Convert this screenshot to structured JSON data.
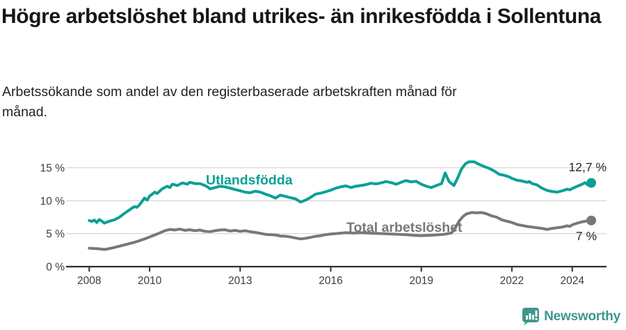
{
  "title": "Högre arbetslöshet bland utrikes- än inrikesfödda i Sollentuna",
  "subtitle": "Arbetssökande som andel av den registerbaserade arbetskraften månad för månad.",
  "branding": {
    "logo_text": "Newsworthy",
    "logo_icon": "newsworthy-bars-bubble-icon",
    "logo_color": "#3d968e"
  },
  "colors": {
    "foreign_born_line": "#0aa096",
    "total_line": "#78777c",
    "gridline": "#d9d9d9",
    "axis": "#2e2e2e",
    "tick_label": "#3d3d3d",
    "end_label": "#2b2b2b",
    "title_text": "#161616",
    "subtitle_text": "#222222"
  },
  "chart_data": {
    "type": "line",
    "title": "Högre arbetslöshet bland utrikes- än inrikesfödda i Sollentuna",
    "subtitle": "Arbetssökande som andel av den registerbaserade arbetskraften månad för månad.",
    "xlabel": "",
    "ylabel": "",
    "x_range": [
      2007.25,
      2025.1
    ],
    "y_range": [
      0,
      16.5
    ],
    "grid": "horizontal",
    "legend_position": "inline-labels",
    "x_ticks": [
      2008,
      2010,
      2013,
      2016,
      2019,
      2022,
      2024
    ],
    "x_tick_labels": [
      "2008",
      "2010",
      "2013",
      "2016",
      "2019",
      "2022",
      "2024"
    ],
    "y_ticks": [
      0,
      5,
      10,
      15
    ],
    "y_tick_labels": [
      "0 %",
      "5 %",
      "10 %",
      "15 %"
    ],
    "series": [
      {
        "name": "Utlandsfödda",
        "color": "#0aa096",
        "end_label": "12,7 %",
        "last_value": 12.7,
        "points": [
          [
            2008.0,
            7.0
          ],
          [
            2008.08,
            6.85
          ],
          [
            2008.17,
            7.05
          ],
          [
            2008.25,
            6.7
          ],
          [
            2008.33,
            7.15
          ],
          [
            2008.42,
            6.9
          ],
          [
            2008.5,
            6.6
          ],
          [
            2008.58,
            6.75
          ],
          [
            2008.67,
            6.9
          ],
          [
            2008.83,
            7.1
          ],
          [
            2009.0,
            7.5
          ],
          [
            2009.17,
            8.1
          ],
          [
            2009.33,
            8.6
          ],
          [
            2009.42,
            8.9
          ],
          [
            2009.5,
            9.1
          ],
          [
            2009.58,
            9.0
          ],
          [
            2009.67,
            9.4
          ],
          [
            2009.75,
            9.9
          ],
          [
            2009.83,
            10.4
          ],
          [
            2009.92,
            10.1
          ],
          [
            2010.0,
            10.7
          ],
          [
            2010.17,
            11.3
          ],
          [
            2010.25,
            11.1
          ],
          [
            2010.42,
            11.8
          ],
          [
            2010.5,
            12.0
          ],
          [
            2010.58,
            12.2
          ],
          [
            2010.67,
            12.0
          ],
          [
            2010.75,
            12.5
          ],
          [
            2010.92,
            12.3
          ],
          [
            2011.08,
            12.7
          ],
          [
            2011.25,
            12.5
          ],
          [
            2011.33,
            12.8
          ],
          [
            2011.5,
            12.6
          ],
          [
            2011.67,
            12.6
          ],
          [
            2011.83,
            12.3
          ],
          [
            2011.92,
            12.1
          ],
          [
            2012.0,
            11.8
          ],
          [
            2012.17,
            12.0
          ],
          [
            2012.33,
            12.2
          ],
          [
            2012.5,
            12.1
          ],
          [
            2012.67,
            11.9
          ],
          [
            2012.83,
            11.7
          ],
          [
            2013.0,
            11.5
          ],
          [
            2013.17,
            11.3
          ],
          [
            2013.33,
            11.2
          ],
          [
            2013.5,
            11.45
          ],
          [
            2013.67,
            11.3
          ],
          [
            2013.83,
            11.0
          ],
          [
            2014.0,
            10.75
          ],
          [
            2014.17,
            10.4
          ],
          [
            2014.33,
            10.85
          ],
          [
            2014.5,
            10.65
          ],
          [
            2014.67,
            10.45
          ],
          [
            2014.83,
            10.3
          ],
          [
            2015.0,
            9.8
          ],
          [
            2015.17,
            10.1
          ],
          [
            2015.33,
            10.5
          ],
          [
            2015.5,
            11.0
          ],
          [
            2015.67,
            11.15
          ],
          [
            2015.83,
            11.35
          ],
          [
            2016.0,
            11.6
          ],
          [
            2016.17,
            11.9
          ],
          [
            2016.33,
            12.1
          ],
          [
            2016.5,
            12.25
          ],
          [
            2016.67,
            12.0
          ],
          [
            2016.83,
            12.2
          ],
          [
            2017.0,
            12.3
          ],
          [
            2017.17,
            12.45
          ],
          [
            2017.33,
            12.65
          ],
          [
            2017.5,
            12.55
          ],
          [
            2017.67,
            12.7
          ],
          [
            2017.83,
            12.9
          ],
          [
            2018.0,
            12.75
          ],
          [
            2018.17,
            12.5
          ],
          [
            2018.33,
            12.8
          ],
          [
            2018.5,
            13.05
          ],
          [
            2018.67,
            12.85
          ],
          [
            2018.83,
            12.95
          ],
          [
            2019.0,
            12.5
          ],
          [
            2019.17,
            12.2
          ],
          [
            2019.33,
            12.0
          ],
          [
            2019.5,
            12.3
          ],
          [
            2019.67,
            12.6
          ],
          [
            2019.79,
            14.2
          ],
          [
            2019.92,
            12.9
          ],
          [
            2020.08,
            12.3
          ],
          [
            2020.21,
            13.5
          ],
          [
            2020.33,
            14.8
          ],
          [
            2020.46,
            15.6
          ],
          [
            2020.58,
            15.9
          ],
          [
            2020.75,
            15.9
          ],
          [
            2020.92,
            15.5
          ],
          [
            2021.08,
            15.2
          ],
          [
            2021.25,
            14.9
          ],
          [
            2021.42,
            14.5
          ],
          [
            2021.58,
            14.0
          ],
          [
            2021.75,
            13.85
          ],
          [
            2021.92,
            13.6
          ],
          [
            2022.0,
            13.4
          ],
          [
            2022.17,
            13.1
          ],
          [
            2022.33,
            13.0
          ],
          [
            2022.5,
            12.8
          ],
          [
            2022.58,
            12.9
          ],
          [
            2022.67,
            12.6
          ],
          [
            2022.83,
            12.4
          ],
          [
            2023.0,
            11.9
          ],
          [
            2023.17,
            11.55
          ],
          [
            2023.33,
            11.4
          ],
          [
            2023.5,
            11.3
          ],
          [
            2023.67,
            11.5
          ],
          [
            2023.83,
            11.75
          ],
          [
            2023.92,
            11.65
          ],
          [
            2024.0,
            11.85
          ],
          [
            2024.17,
            12.2
          ],
          [
            2024.33,
            12.5
          ],
          [
            2024.42,
            12.75
          ],
          [
            2024.5,
            12.45
          ],
          [
            2024.63,
            12.7
          ]
        ]
      },
      {
        "name": "Total arbetslöshet",
        "color": "#78777c",
        "end_label": "7 %",
        "last_value": 7.0,
        "points": [
          [
            2008.0,
            2.8
          ],
          [
            2008.17,
            2.75
          ],
          [
            2008.33,
            2.7
          ],
          [
            2008.5,
            2.6
          ],
          [
            2008.67,
            2.75
          ],
          [
            2008.83,
            2.9
          ],
          [
            2009.0,
            3.1
          ],
          [
            2009.17,
            3.3
          ],
          [
            2009.33,
            3.5
          ],
          [
            2009.5,
            3.7
          ],
          [
            2009.67,
            3.95
          ],
          [
            2009.83,
            4.2
          ],
          [
            2010.0,
            4.5
          ],
          [
            2010.17,
            4.8
          ],
          [
            2010.33,
            5.1
          ],
          [
            2010.5,
            5.45
          ],
          [
            2010.67,
            5.65
          ],
          [
            2010.83,
            5.55
          ],
          [
            2011.0,
            5.7
          ],
          [
            2011.17,
            5.5
          ],
          [
            2011.33,
            5.6
          ],
          [
            2011.5,
            5.45
          ],
          [
            2011.67,
            5.55
          ],
          [
            2011.83,
            5.35
          ],
          [
            2012.0,
            5.3
          ],
          [
            2012.17,
            5.45
          ],
          [
            2012.33,
            5.55
          ],
          [
            2012.5,
            5.6
          ],
          [
            2012.67,
            5.4
          ],
          [
            2012.83,
            5.5
          ],
          [
            2013.0,
            5.35
          ],
          [
            2013.17,
            5.45
          ],
          [
            2013.33,
            5.3
          ],
          [
            2013.5,
            5.2
          ],
          [
            2013.67,
            5.05
          ],
          [
            2013.83,
            4.9
          ],
          [
            2014.0,
            4.85
          ],
          [
            2014.17,
            4.8
          ],
          [
            2014.33,
            4.65
          ],
          [
            2014.5,
            4.6
          ],
          [
            2014.67,
            4.5
          ],
          [
            2014.83,
            4.35
          ],
          [
            2015.0,
            4.2
          ],
          [
            2015.17,
            4.3
          ],
          [
            2015.33,
            4.45
          ],
          [
            2015.5,
            4.6
          ],
          [
            2015.67,
            4.7
          ],
          [
            2015.83,
            4.85
          ],
          [
            2016.0,
            4.95
          ],
          [
            2016.25,
            5.05
          ],
          [
            2016.5,
            5.15
          ],
          [
            2016.75,
            5.1
          ],
          [
            2017.0,
            5.15
          ],
          [
            2017.25,
            5.1
          ],
          [
            2017.5,
            5.05
          ],
          [
            2017.75,
            5.0
          ],
          [
            2018.0,
            4.95
          ],
          [
            2018.25,
            4.9
          ],
          [
            2018.5,
            4.85
          ],
          [
            2018.75,
            4.75
          ],
          [
            2019.0,
            4.7
          ],
          [
            2019.25,
            4.75
          ],
          [
            2019.5,
            4.8
          ],
          [
            2019.75,
            4.9
          ],
          [
            2020.0,
            5.1
          ],
          [
            2020.13,
            5.9
          ],
          [
            2020.25,
            6.9
          ],
          [
            2020.38,
            7.6
          ],
          [
            2020.5,
            8.0
          ],
          [
            2020.67,
            8.2
          ],
          [
            2020.83,
            8.15
          ],
          [
            2021.0,
            8.2
          ],
          [
            2021.17,
            8.0
          ],
          [
            2021.33,
            7.7
          ],
          [
            2021.5,
            7.5
          ],
          [
            2021.67,
            7.1
          ],
          [
            2021.83,
            6.9
          ],
          [
            2022.0,
            6.7
          ],
          [
            2022.17,
            6.4
          ],
          [
            2022.33,
            6.25
          ],
          [
            2022.5,
            6.1
          ],
          [
            2022.67,
            6.0
          ],
          [
            2022.83,
            5.9
          ],
          [
            2023.0,
            5.8
          ],
          [
            2023.17,
            5.65
          ],
          [
            2023.33,
            5.8
          ],
          [
            2023.5,
            5.9
          ],
          [
            2023.67,
            6.0
          ],
          [
            2023.83,
            6.2
          ],
          [
            2023.92,
            6.1
          ],
          [
            2024.0,
            6.35
          ],
          [
            2024.17,
            6.6
          ],
          [
            2024.33,
            6.8
          ],
          [
            2024.5,
            6.95
          ],
          [
            2024.63,
            7.0
          ]
        ]
      }
    ]
  }
}
